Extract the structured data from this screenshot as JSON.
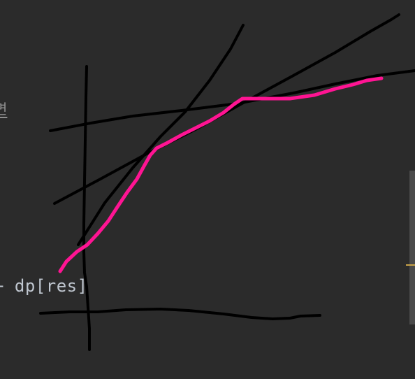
{
  "editor": {
    "code_fragment_top": "면",
    "code_fragment_mid": "+ dp[res]"
  },
  "annotation": {
    "ink_color": "#000000",
    "highlight_color": "#ff1493"
  },
  "colors": {
    "background": "#2b2b2b",
    "scrollbar": "#4a4a4a",
    "scroll_marker": "#c8a248"
  }
}
